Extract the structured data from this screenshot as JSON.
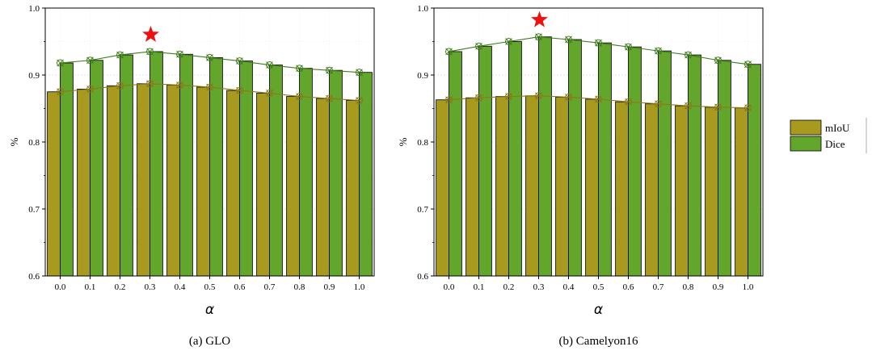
{
  "colors": {
    "miou": "#a89a1e",
    "dice": "#62a62b",
    "miou_line": "#8a7a18",
    "dice_line": "#3f7d1c",
    "star": "#ee1111",
    "grid": "#c8c8c8"
  },
  "legend": {
    "miou": "mIoU",
    "dice": "Dice"
  },
  "chart_data": [
    {
      "type": "bar",
      "title": "(a) GLO",
      "xlabel": "α",
      "ylabel": "%",
      "ylim": [
        0.6,
        1.0
      ],
      "yticks": [
        "0.6",
        "0.7",
        "0.8",
        "0.9",
        "1.0"
      ],
      "categories": [
        "0.0",
        "0.1",
        "0.2",
        "0.3",
        "0.4",
        "0.5",
        "0.6",
        "0.7",
        "0.8",
        "0.9",
        "1.0"
      ],
      "series": [
        {
          "name": "mIoU",
          "values": [
            0.875,
            0.879,
            0.884,
            0.887,
            0.885,
            0.882,
            0.877,
            0.873,
            0.868,
            0.865,
            0.862
          ]
        },
        {
          "name": "Dice",
          "values": [
            0.918,
            0.922,
            0.93,
            0.935,
            0.931,
            0.926,
            0.921,
            0.915,
            0.91,
            0.907,
            0.904
          ]
        }
      ],
      "best_index": 3
    },
    {
      "type": "bar",
      "title": "(b) Camelyon16",
      "xlabel": "α",
      "ylabel": "%",
      "ylim": [
        0.6,
        1.0
      ],
      "yticks": [
        "0.6",
        "0.7",
        "0.8",
        "0.9",
        "1.0"
      ],
      "categories": [
        "0.0",
        "0.1",
        "0.2",
        "0.3",
        "0.4",
        "0.5",
        "0.6",
        "0.7",
        "0.8",
        "0.9",
        "1.0"
      ],
      "series": [
        {
          "name": "mIoU",
          "values": [
            0.863,
            0.866,
            0.868,
            0.869,
            0.867,
            0.864,
            0.86,
            0.857,
            0.854,
            0.852,
            0.851
          ]
        },
        {
          "name": "Dice",
          "values": [
            0.935,
            0.943,
            0.95,
            0.957,
            0.953,
            0.948,
            0.942,
            0.936,
            0.93,
            0.922,
            0.916
          ]
        }
      ],
      "best_index": 3
    }
  ]
}
